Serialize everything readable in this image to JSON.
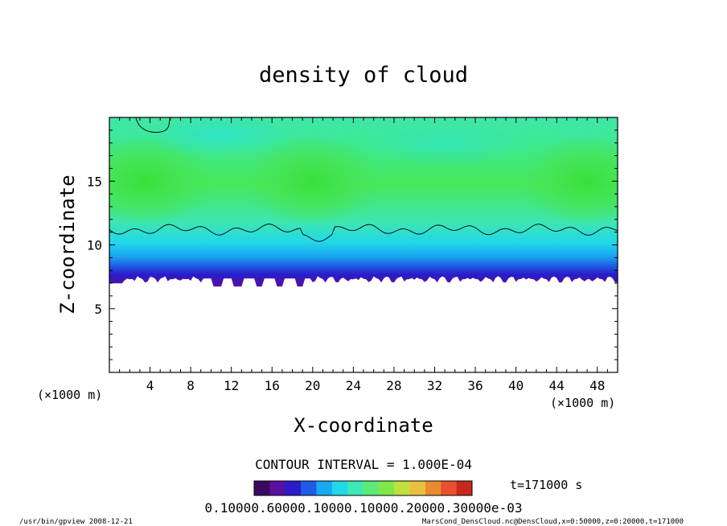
{
  "chart_data": {
    "type": "heatmap",
    "title": "density of cloud",
    "xlabel": "X-coordinate",
    "ylabel": "Z-coordinate",
    "x_unit_left": "(×1000 m)",
    "x_unit_right": "(×1000 m)",
    "xlim": [
      0,
      50
    ],
    "ylim": [
      0,
      20
    ],
    "x_ticks": [
      4,
      8,
      12,
      16,
      20,
      24,
      28,
      32,
      36,
      40,
      44,
      48
    ],
    "y_ticks": [
      5,
      10,
      15
    ],
    "contour_interval_text": "CONTOUR INTERVAL = 1.000E-04",
    "time_text": "t=171000 s",
    "colorbar_labels_text": "0.10000.60000.10000.10000.20000.30000e-03",
    "colorbar_colors": [
      "#3b0a5e",
      "#5a0fa0",
      "#2a1cc8",
      "#1e5ce8",
      "#1aa8f0",
      "#22d8e8",
      "#3ee8b8",
      "#5eea78",
      "#7ee848",
      "#c0e040",
      "#e8c040",
      "#e88a30",
      "#e85030",
      "#c8281e"
    ],
    "cloud_base_z": 7.3,
    "cloud_top_z": 11.2,
    "green_peak_regions": [
      {
        "x": 3.5,
        "z": 15
      },
      {
        "x": 20,
        "z": 15
      },
      {
        "x": 47,
        "z": 15
      }
    ]
  },
  "footer": {
    "left": "/usr/bin/gpview  2008-12-21",
    "right": "MarsCond_DensCloud.nc@DensCloud,x=0:50000,z=0:20000,t=171000"
  }
}
